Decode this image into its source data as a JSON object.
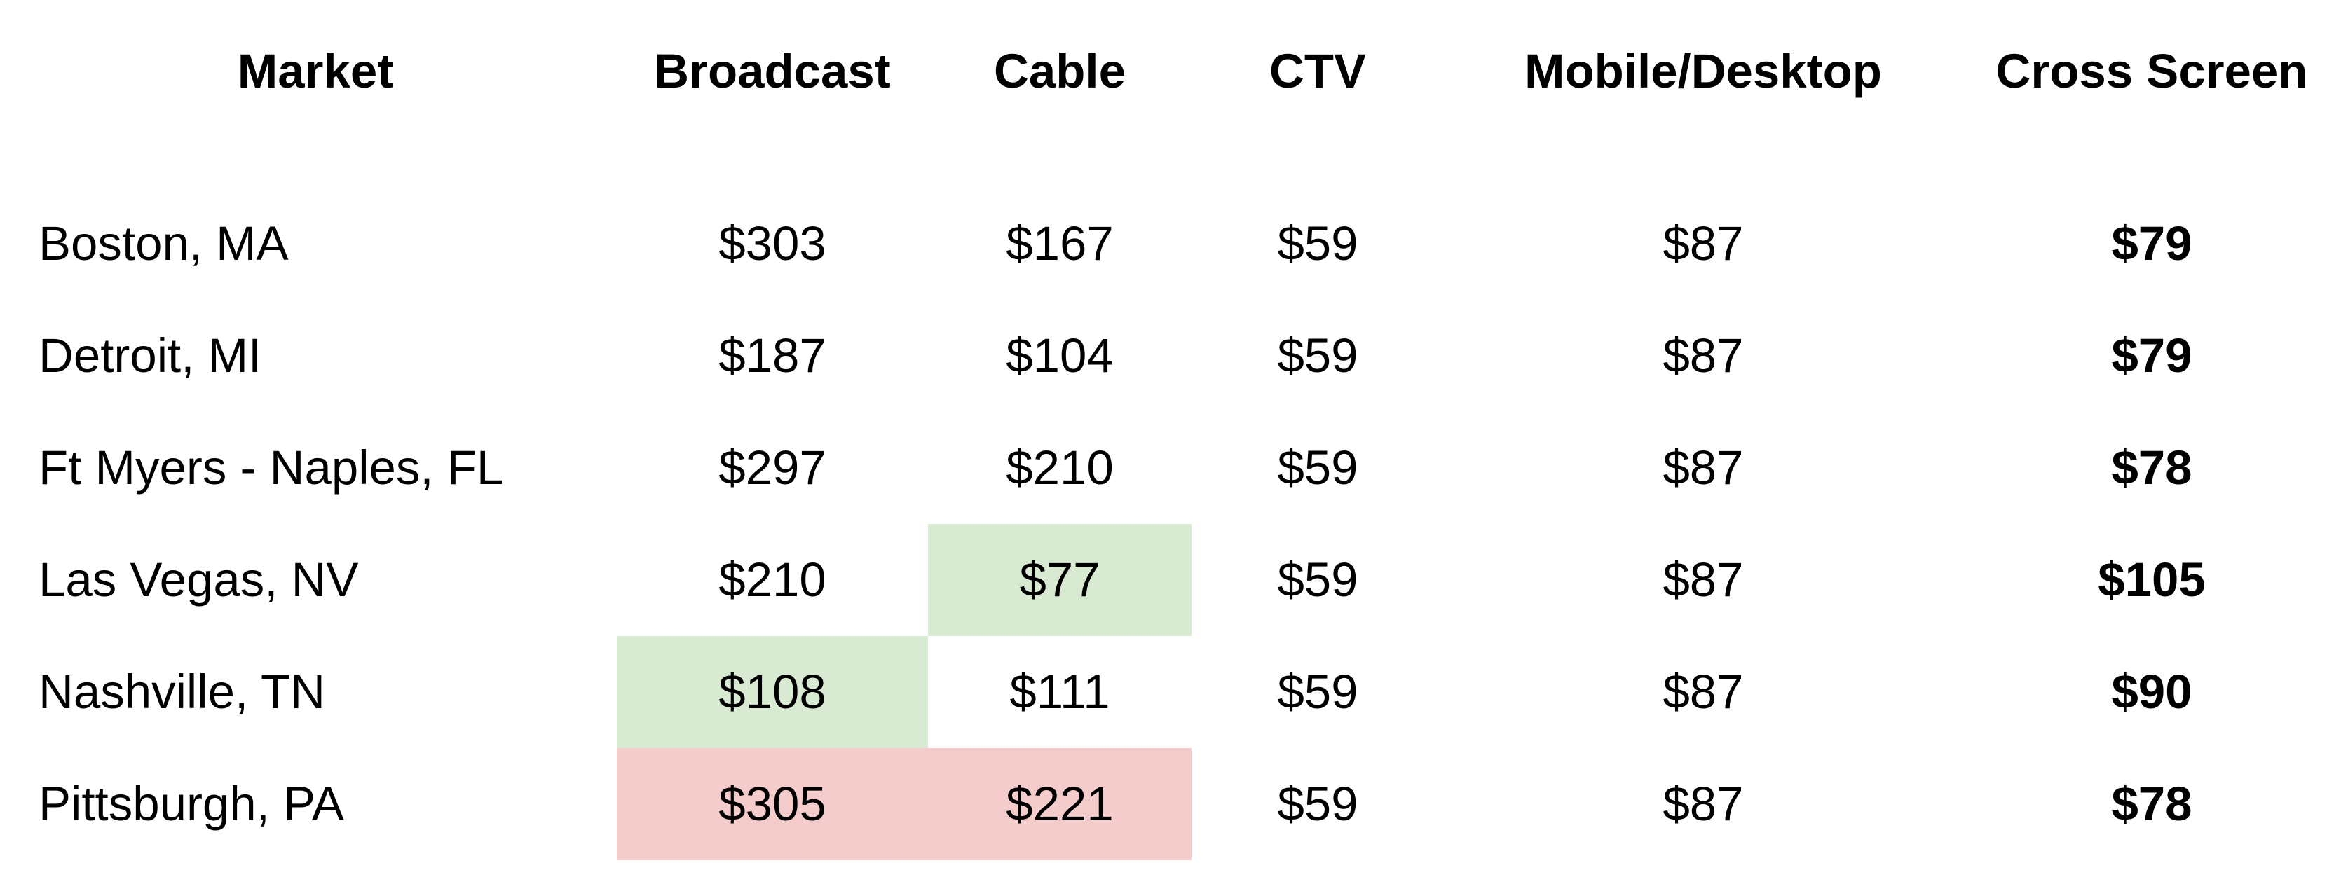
{
  "columns": {
    "market": "Market",
    "broadcast": "Broadcast",
    "cable": "Cable",
    "ctv": "CTV",
    "mobile_desktop": "Mobile/Desktop",
    "cross_screen": "Cross Screen"
  },
  "rows": [
    {
      "market": "Boston, MA",
      "broadcast": "$303",
      "cable": "$167",
      "ctv": "$59",
      "mobile_desktop": "$87",
      "cross_screen": "$79"
    },
    {
      "market": "Detroit, MI",
      "broadcast": "$187",
      "cable": "$104",
      "ctv": "$59",
      "mobile_desktop": "$87",
      "cross_screen": "$79"
    },
    {
      "market": "Ft Myers - Naples, FL",
      "broadcast": "$297",
      "cable": "$210",
      "ctv": "$59",
      "mobile_desktop": "$87",
      "cross_screen": "$78"
    },
    {
      "market": "Las Vegas, NV",
      "broadcast": "$210",
      "cable": "$77",
      "ctv": "$59",
      "mobile_desktop": "$87",
      "cross_screen": "$105"
    },
    {
      "market": "Nashville, TN",
      "broadcast": "$108",
      "cable": "$111",
      "ctv": "$59",
      "mobile_desktop": "$87",
      "cross_screen": "$90"
    },
    {
      "market": "Pittsburgh, PA",
      "broadcast": "$305",
      "cable": "$221",
      "ctv": "$59",
      "mobile_desktop": "$87",
      "cross_screen": "$78"
    }
  ],
  "highlight_colors": {
    "lowest": "#d9ead3",
    "highest": "#f4cccc"
  }
}
